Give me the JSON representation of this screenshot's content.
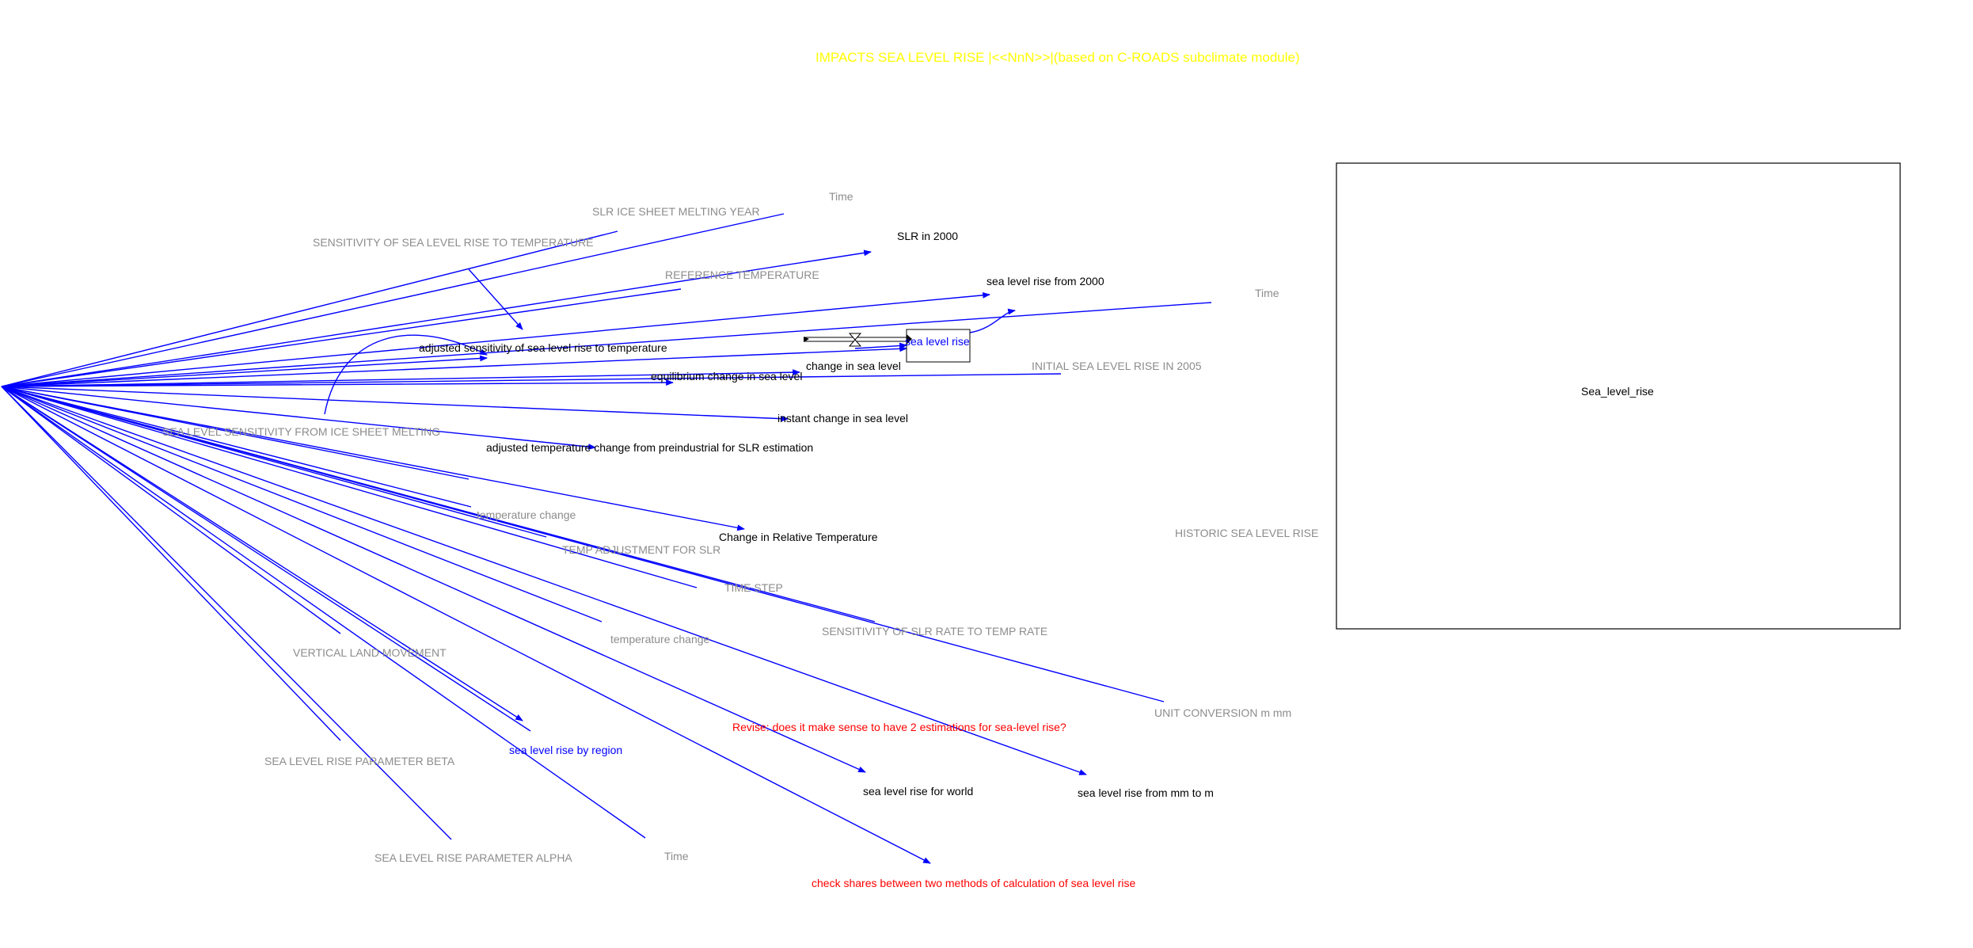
{
  "title": "IMPACTS SEA LEVEL RISE |<<NnN>>|(based on C-ROADS subclimate module)",
  "colors": {
    "title": "#ffff00",
    "link": "#0000ff",
    "constant": "#8c8c8c",
    "variable": "#000000",
    "stock": "#0000ff",
    "note": "#ff0000",
    "box": "#000000"
  },
  "labels": {
    "time_top": "Time",
    "slr_ice_sheet_melting_year": "SLR ICE SHEET MELTING YEAR",
    "sensitivity_slr_temp": "SENSITIVITY OF SEA LEVEL RISE TO TEMPERATURE",
    "slr_in_2000": "SLR in 2000",
    "reference_temperature": "REFERENCE TEMPERATURE",
    "sea_level_rise_from_2000": "sea level rise from 2000",
    "time_right": "Time",
    "sea_level_rise_stock": "sea level rise",
    "adjusted_sensitivity": "adjusted sensitivity of sea level rise to temperature",
    "change_in_sea_level": "change in sea level",
    "initial_sea_level_rise_2005": "INITIAL SEA LEVEL RISE IN 2005",
    "equilibrium_change": "equilibrium change in sea level",
    "instant_change": "instant change in sea level",
    "sea_level_sensitivity_ice": "SEA LEVEL SENSITIVITY FROM ICE SHEET MELTING",
    "adjusted_temperature_change": "adjusted temperature change from preindustrial for SLR estimation",
    "temperature_change_1": "temperature change",
    "change_relative_temperature": "Change in Relative Temperature",
    "temp_adjustment": "TEMP ADJUSTMENT FOR SLR",
    "time_step": "TIME STEP",
    "sensitivity_slr_rate": "SENSITIVITY OF SLR RATE TO TEMP RATE",
    "vertical_land_movement": "VERTICAL LAND MOVEMENT",
    "temperature_change_2": "temperature change",
    "unit_conversion": "UNIT CONVERSION m mm",
    "revise_note": "Revise: does it make sense to have 2 estimations for sea-level rise?",
    "slr_parameter_beta": "SEA LEVEL RISE PARAMETER BETA",
    "sea_level_rise_by_region": "sea level rise by region",
    "sea_level_rise_for_world": "sea level rise for world",
    "sea_level_rise_mm_to_m": "sea level rise from mm to m",
    "slr_parameter_alpha": "SEA LEVEL RISE PARAMETER ALPHA",
    "time_bottom": "Time",
    "check_shares_note": "check shares between two methods of calculation of sea level rise",
    "historic_sea_level_rise": "HISTORIC SEA LEVEL RISE",
    "graph_label": "Sea_level_rise"
  }
}
